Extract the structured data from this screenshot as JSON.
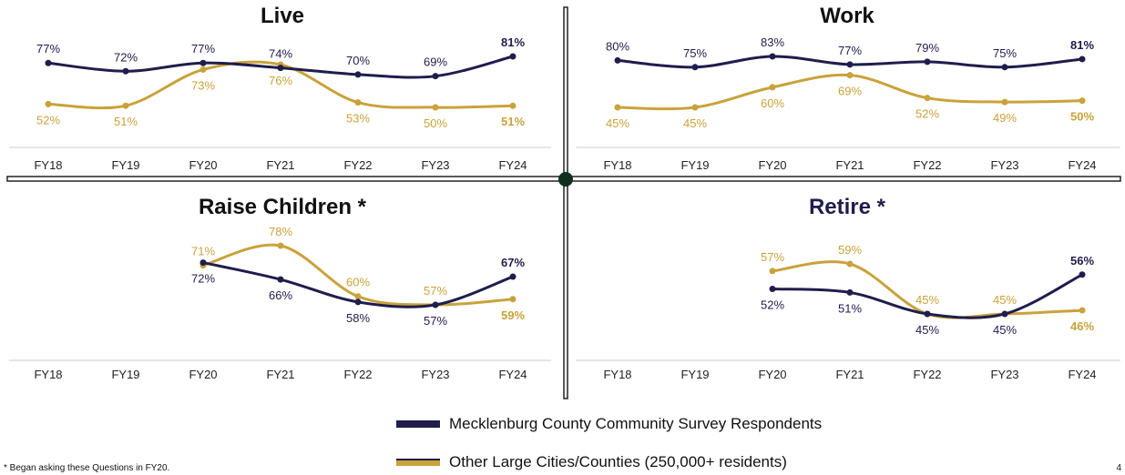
{
  "colors": {
    "mecklenburg": "#1f1d4d",
    "other": "#c9a23a",
    "axis": "#cccccc",
    "divider": "#222222"
  },
  "legend": {
    "mecklenburg": "Mecklenburg County Community Survey Respondents",
    "other": "Other Large Cities/Counties (250,000+ residents)"
  },
  "footnote": "* Began asking these Questions in FY20.",
  "page_number": "4",
  "chart_data": [
    {
      "type": "line",
      "title": "Live",
      "categories": [
        "FY18",
        "FY19",
        "FY20",
        "FY21",
        "FY22",
        "FY23",
        "FY24"
      ],
      "ylim": [
        45,
        85
      ],
      "series": [
        {
          "name": "Mecklenburg County Community Survey Respondents",
          "values": [
            77,
            72,
            77,
            74,
            70,
            69,
            81
          ],
          "labels": [
            "77%",
            "72%",
            "77%",
            "74%",
            "70%",
            "69%",
            "81%"
          ]
        },
        {
          "name": "Other Large Cities/Counties (250,000+ residents)",
          "values": [
            52,
            51,
            73,
            76,
            53,
            50,
            51
          ],
          "labels": [
            "52%",
            "51%",
            "73%",
            "76%",
            "53%",
            "50%",
            "51%"
          ]
        }
      ]
    },
    {
      "type": "line",
      "title": "Work",
      "categories": [
        "FY18",
        "FY19",
        "FY20",
        "FY21",
        "FY22",
        "FY23",
        "FY24"
      ],
      "ylim": [
        40,
        85
      ],
      "series": [
        {
          "name": "Mecklenburg County Community Survey Respondents",
          "values": [
            80,
            75,
            83,
            77,
            79,
            75,
            81
          ],
          "labels": [
            "80%",
            "75%",
            "83%",
            "77%",
            "79%",
            "75%",
            "81%"
          ]
        },
        {
          "name": "Other Large Cities/Counties (250,000+ residents)",
          "values": [
            45,
            45,
            60,
            69,
            52,
            49,
            50
          ],
          "labels": [
            "45%",
            "45%",
            "60%",
            "69%",
            "52%",
            "49%",
            "50%"
          ]
        }
      ]
    },
    {
      "type": "line",
      "title": "Raise Children *",
      "categories": [
        "FY18",
        "FY19",
        "FY20",
        "FY21",
        "FY22",
        "FY23",
        "FY24"
      ],
      "ylim": [
        40,
        85
      ],
      "series": [
        {
          "name": "Mecklenburg County Community Survey Respondents",
          "values": [
            null,
            null,
            72,
            66,
            58,
            57,
            67
          ],
          "labels": [
            "",
            "",
            "72%",
            "66%",
            "58%",
            "57%",
            "67%"
          ]
        },
        {
          "name": "Other Large Cities/Counties (250,000+ residents)",
          "values": [
            null,
            null,
            71,
            78,
            60,
            57,
            59
          ],
          "labels": [
            "",
            "",
            "71%",
            "78%",
            "60%",
            "57%",
            "59%"
          ]
        }
      ]
    },
    {
      "type": "line",
      "title": "Retire *",
      "categories": [
        "FY18",
        "FY19",
        "FY20",
        "FY21",
        "FY22",
        "FY23",
        "FY24"
      ],
      "ylim": [
        30,
        70
      ],
      "series": [
        {
          "name": "Mecklenburg County Community Survey Respondents",
          "values": [
            null,
            null,
            52,
            51,
            45,
            45,
            56
          ],
          "labels": [
            "",
            "",
            "52%",
            "51%",
            "45%",
            "45%",
            "56%"
          ]
        },
        {
          "name": "Other Large Cities/Counties (250,000+ residents)",
          "values": [
            null,
            null,
            57,
            59,
            45,
            45,
            46
          ],
          "labels": [
            "",
            "",
            "57%",
            "59%",
            "45%",
            "45%",
            "46%"
          ]
        }
      ]
    }
  ]
}
